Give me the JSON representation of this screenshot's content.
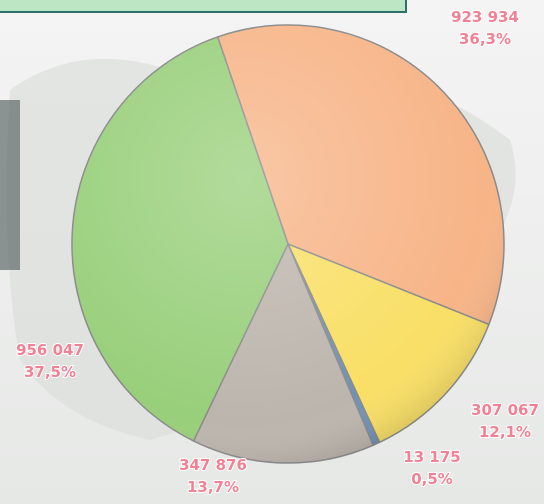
{
  "chart_data": {
    "type": "pie",
    "values": [
      923934,
      307067,
      13175,
      347876,
      956047
    ],
    "value_labels": [
      "923 934",
      "307 067",
      "13 175",
      "347 876",
      "956 047"
    ],
    "percents": [
      36.3,
      12.1,
      0.5,
      13.7,
      37.5
    ],
    "percent_labels": [
      "36,3%",
      "12,1%",
      "0,5%",
      "13,7%",
      "37,5%"
    ],
    "colors": [
      "#f7b487",
      "#f9df66",
      "#7092b8",
      "#bcb5ad",
      "#98cf7a"
    ]
  }
}
